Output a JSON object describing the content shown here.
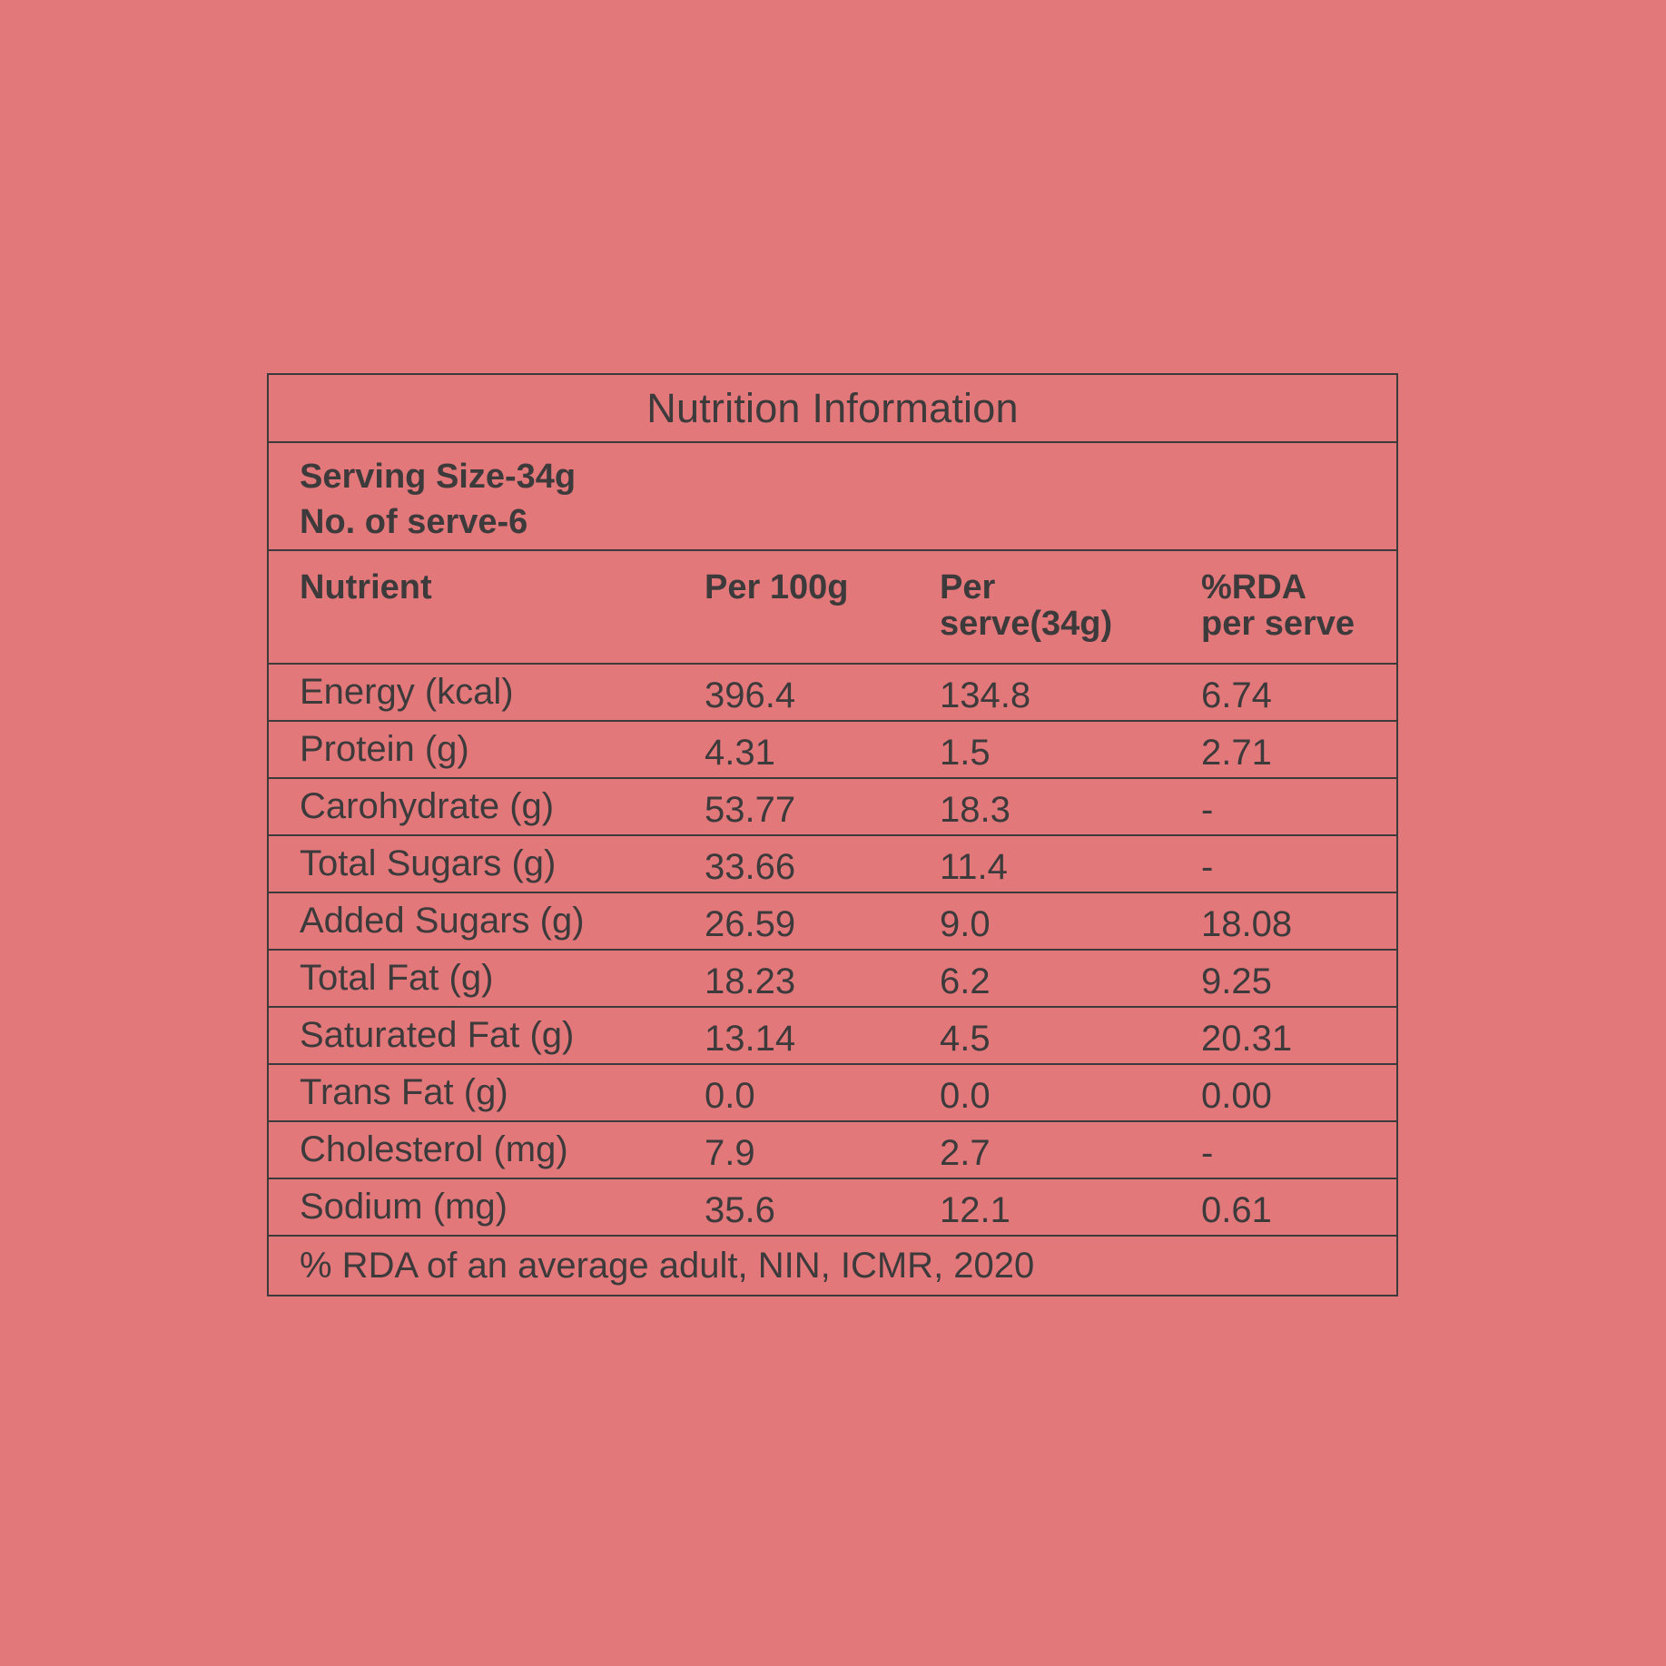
{
  "title": "Nutrition Information",
  "serving": {
    "size": "Serving Size-34g",
    "count": "No. of serve-6"
  },
  "headers": {
    "nutrient": "Nutrient",
    "per_100g": "Per 100g",
    "per_serve_line1": "Per",
    "per_serve_line2": "serve(34g)",
    "rda_line1": "%RDA",
    "rda_line2": "per serve"
  },
  "rows": [
    {
      "nutrient": "Energy (kcal)",
      "per_100g": "396.4",
      "per_serve": "134.8",
      "rda": "6.74"
    },
    {
      "nutrient": "Protein (g)",
      "per_100g": "4.31",
      "per_serve": "1.5",
      "rda": "2.71"
    },
    {
      "nutrient": "Carohydrate (g)",
      "per_100g": "53.77",
      "per_serve": "18.3",
      "rda": "-"
    },
    {
      "nutrient": "Total Sugars (g)",
      "per_100g": "33.66",
      "per_serve": "11.4",
      "rda": "-"
    },
    {
      "nutrient": "Added Sugars (g)",
      "per_100g": "26.59",
      "per_serve": "9.0",
      "rda": "18.08"
    },
    {
      "nutrient": "Total Fat (g)",
      "per_100g": "18.23",
      "per_serve": "6.2",
      "rda": "9.25"
    },
    {
      "nutrient": "Saturated Fat (g)",
      "per_100g": "13.14",
      "per_serve": "4.5",
      "rda": "20.31"
    },
    {
      "nutrient": "Trans Fat (g)",
      "per_100g": "0.0",
      "per_serve": "0.0",
      "rda": "0.00"
    },
    {
      "nutrient": "Cholesterol (mg)",
      "per_100g": "7.9",
      "per_serve": "2.7",
      "rda": "-"
    },
    {
      "nutrient": "Sodium (mg)",
      "per_100g": "35.6",
      "per_serve": "12.1",
      "rda": "0.61"
    }
  ],
  "footer": "% RDA of an average adult, NIN, ICMR, 2020",
  "colors": {
    "background": "#e2787a",
    "ink": "#3d3a3c"
  }
}
